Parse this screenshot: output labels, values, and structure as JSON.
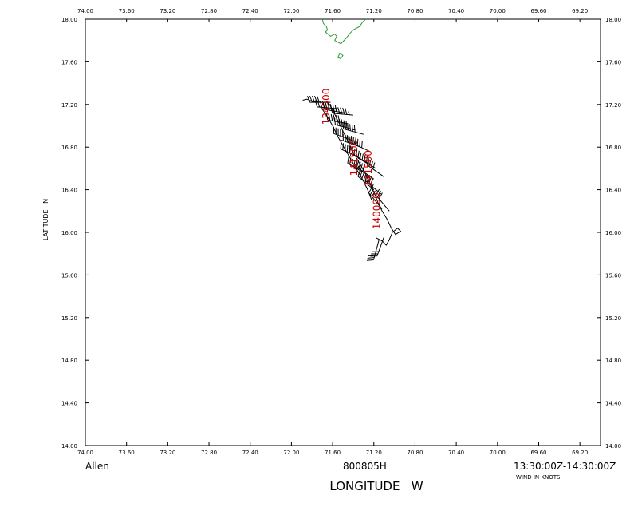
{
  "chart_data": {
    "type": "map-track",
    "xlabel": "LONGITUDE   W",
    "ylabel": "LATITUDE   N",
    "xlim": [
      74.0,
      69.0
    ],
    "ylim": [
      14.0,
      18.0
    ],
    "x_ticks": [
      "74.00",
      "73.60",
      "73.20",
      "72.80",
      "72.40",
      "72.00",
      "71.60",
      "71.20",
      "70.80",
      "70.40",
      "70.00",
      "69.60",
      "69.20"
    ],
    "y_ticks": [
      "14.00",
      "14.40",
      "14.80",
      "15.20",
      "15.60",
      "16.00",
      "16.40",
      "16.80",
      "17.20",
      "17.60",
      "18.00"
    ],
    "storm_name": "Allen",
    "flight_id": "800805H",
    "time_range": "13:30:00Z-14:30:00Z",
    "wind_units": "WIND IN KNOTS",
    "time_labels": [
      {
        "text": "134500",
        "lon": 71.63,
        "lat": 17.18
      },
      {
        "text": "141500",
        "lon": 71.36,
        "lat": 16.7
      },
      {
        "text": "141500",
        "lon": 71.22,
        "lat": 16.6
      },
      {
        "text": "140000",
        "lon": 71.14,
        "lat": 16.2
      }
    ],
    "track": [
      [
        71.89,
        17.24
      ],
      [
        71.85,
        17.25
      ],
      [
        71.8,
        17.23
      ],
      [
        71.72,
        17.22
      ],
      [
        71.65,
        17.22
      ],
      [
        71.63,
        17.2
      ],
      [
        71.6,
        17.15
      ],
      [
        71.55,
        17.05
      ],
      [
        71.5,
        16.95
      ],
      [
        71.45,
        16.85
      ],
      [
        71.4,
        16.75
      ],
      [
        71.34,
        16.65
      ],
      [
        71.28,
        16.55
      ],
      [
        71.24,
        16.46
      ],
      [
        71.2,
        16.38
      ],
      [
        71.16,
        16.28
      ],
      [
        71.12,
        16.2
      ],
      [
        71.07,
        16.12
      ],
      [
        71.03,
        16.04
      ],
      [
        70.99,
        15.98
      ],
      [
        70.94,
        16.01
      ],
      [
        70.97,
        16.04
      ],
      [
        71.02,
        16.0
      ],
      [
        71.05,
        15.93
      ],
      [
        71.08,
        15.88
      ],
      [
        71.12,
        15.92
      ],
      [
        71.18,
        15.95
      ]
    ],
    "track_inner": [
      [
        71.72,
        17.18
      ],
      [
        71.66,
        17.1
      ],
      [
        71.6,
        17.0
      ],
      [
        71.55,
        16.9
      ],
      [
        71.48,
        16.78
      ],
      [
        71.42,
        16.68
      ],
      [
        71.36,
        16.58
      ],
      [
        71.3,
        16.48
      ],
      [
        71.26,
        16.4
      ],
      [
        71.22,
        16.3
      ]
    ],
    "wind_barbs": [
      {
        "lon": 71.62,
        "lat": 17.22,
        "dir": 270,
        "speed": 50
      },
      {
        "lon": 71.55,
        "lat": 17.16,
        "dir": 275,
        "speed": 55
      },
      {
        "lon": 71.48,
        "lat": 17.12,
        "dir": 280,
        "speed": 60
      },
      {
        "lon": 71.4,
        "lat": 17.1,
        "dir": 275,
        "speed": 65
      },
      {
        "lon": 71.45,
        "lat": 17.02,
        "dir": 280,
        "speed": 55
      },
      {
        "lon": 71.38,
        "lat": 16.96,
        "dir": 285,
        "speed": 60
      },
      {
        "lon": 71.3,
        "lat": 16.92,
        "dir": 285,
        "speed": 60
      },
      {
        "lon": 71.4,
        "lat": 16.86,
        "dir": 290,
        "speed": 55
      },
      {
        "lon": 71.33,
        "lat": 16.8,
        "dir": 290,
        "speed": 55
      },
      {
        "lon": 71.24,
        "lat": 16.76,
        "dir": 295,
        "speed": 55
      },
      {
        "lon": 71.34,
        "lat": 16.7,
        "dir": 295,
        "speed": 50
      },
      {
        "lon": 71.26,
        "lat": 16.65,
        "dir": 300,
        "speed": 50
      },
      {
        "lon": 71.18,
        "lat": 16.6,
        "dir": 300,
        "speed": 45
      },
      {
        "lon": 71.28,
        "lat": 16.55,
        "dir": 300,
        "speed": 45
      },
      {
        "lon": 71.2,
        "lat": 16.5,
        "dir": 305,
        "speed": 40
      },
      {
        "lon": 71.1,
        "lat": 16.52,
        "dir": 305,
        "speed": 40
      },
      {
        "lon": 71.2,
        "lat": 16.4,
        "dir": 310,
        "speed": 35
      },
      {
        "lon": 71.13,
        "lat": 16.36,
        "dir": 310,
        "speed": 35
      },
      {
        "lon": 71.12,
        "lat": 16.22,
        "dir": 320,
        "speed": 30
      },
      {
        "lon": 71.05,
        "lat": 16.2,
        "dir": 320,
        "speed": 30
      },
      {
        "lon": 71.1,
        "lat": 15.96,
        "dir": 200,
        "speed": 30
      },
      {
        "lon": 71.15,
        "lat": 15.93,
        "dir": 195,
        "speed": 30
      }
    ],
    "coastline": [
      [
        71.7,
        18.0
      ],
      [
        71.69,
        17.96
      ],
      [
        71.66,
        17.93
      ],
      [
        71.65,
        17.9
      ],
      [
        71.67,
        17.88
      ],
      [
        71.62,
        17.84
      ],
      [
        71.58,
        17.86
      ],
      [
        71.56,
        17.84
      ],
      [
        71.58,
        17.8
      ],
      [
        71.52,
        17.77
      ],
      [
        71.47,
        17.82
      ],
      [
        71.43,
        17.87
      ],
      [
        71.4,
        17.9
      ],
      [
        71.34,
        17.93
      ],
      [
        71.31,
        17.97
      ],
      [
        71.28,
        18.0
      ]
    ],
    "coastline_islet": [
      [
        71.55,
        17.64
      ],
      [
        71.53,
        17.68
      ],
      [
        71.5,
        17.66
      ],
      [
        71.52,
        17.63
      ],
      [
        71.55,
        17.64
      ]
    ],
    "colors": {
      "track": "#000000",
      "labels": "#cc0000",
      "coast": "#339933",
      "axes": "#000000"
    }
  }
}
